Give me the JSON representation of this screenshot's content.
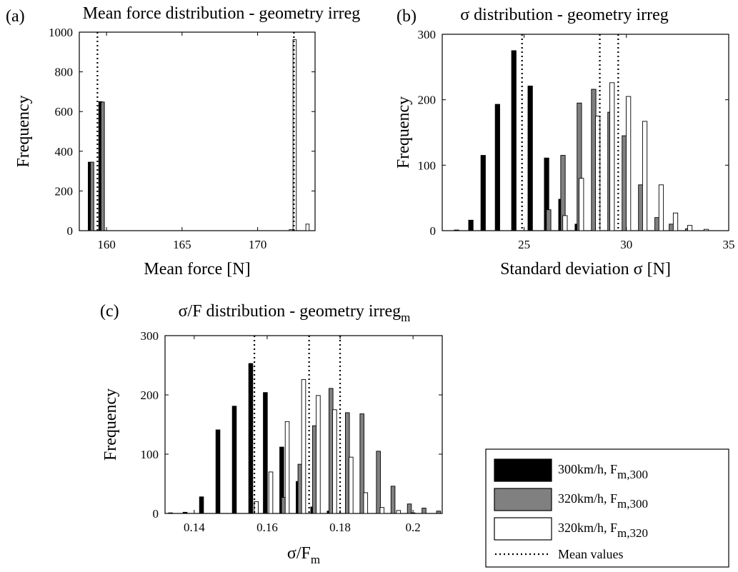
{
  "colors": {
    "series_300_F300": "#000000",
    "series_320_F300": "#808080",
    "series_320_F320": "#ffffff",
    "mean_line": "#000000",
    "axes": "#000000"
  },
  "legend": {
    "placement": "bottom-right",
    "items": [
      {
        "label": "300km/h, F",
        "sub": "m,300",
        "style": "black-bar"
      },
      {
        "label": "320km/h, F",
        "sub": "m,300",
        "style": "gray-bar"
      },
      {
        "label": "320km/h, F",
        "sub": "m,320",
        "style": "white-bar"
      },
      {
        "label": "Mean values",
        "sub": "",
        "style": "dotted-line"
      }
    ]
  },
  "chart_data": [
    {
      "panel_label": "(a)",
      "type": "bar",
      "title": "Mean force distribution - geometry irreg",
      "xlabel": "Mean force [N]",
      "ylabel": "Frequency",
      "xlim": [
        158.2,
        173.8
      ],
      "ylim": [
        0,
        1000
      ],
      "xticks": [
        160,
        165,
        170
      ],
      "yticks": [
        0,
        200,
        400,
        600,
        800,
        1000
      ],
      "bar_width": 0.22,
      "series": [
        {
          "name": "300km/h, F m,300",
          "color": "#000000",
          "x": [
            158.9,
            159.6
          ],
          "values": [
            345,
            650
          ]
        },
        {
          "name": "320km/h, F m,300",
          "color": "#808080",
          "x": [
            159.05,
            159.75
          ],
          "values": [
            345,
            648
          ]
        },
        {
          "name": "320km/h, F m,320",
          "color": "#ffffff",
          "x": [
            172.2,
            172.45,
            173.3
          ],
          "values": [
            5,
            962,
            33
          ]
        }
      ],
      "mean_values": [
        159.4,
        172.4
      ]
    },
    {
      "panel_label": "(b)",
      "type": "bar",
      "title": "σ distribution - geometry irreg",
      "xlabel": "Standard deviation σ  [N]",
      "ylabel": "Frequency",
      "xlim": [
        21,
        35
      ],
      "ylim": [
        0,
        300
      ],
      "xticks": [
        25,
        30,
        35
      ],
      "yticks": [
        0,
        100,
        200,
        300
      ],
      "bar_width": 0.22,
      "series": [
        {
          "name": "300km/h, F m,300",
          "color": "#000000",
          "x": [
            21.7,
            22.4,
            23.0,
            23.7,
            24.5,
            25.3,
            26.1,
            26.8,
            27.6
          ],
          "values": [
            1,
            16,
            115,
            193,
            275,
            221,
            111,
            48,
            10
          ]
        },
        {
          "name": "320km/h, F m,300",
          "color": "#808080",
          "x": [
            26.2,
            26.9,
            27.7,
            28.4,
            29.2,
            29.9,
            30.7,
            31.5,
            32.2,
            33.0
          ],
          "values": [
            32,
            115,
            195,
            216,
            181,
            145,
            70,
            20,
            10,
            3
          ]
        },
        {
          "name": "320km/h, F m,320",
          "color": "#ffffff",
          "x": [
            27.0,
            27.8,
            28.6,
            29.3,
            30.1,
            30.9,
            31.7,
            32.4,
            33.1,
            33.9
          ],
          "values": [
            23,
            80,
            175,
            226,
            205,
            167,
            70,
            27,
            8,
            2
          ]
        }
      ],
      "mean_values": [
        24.9,
        28.7,
        29.6
      ]
    },
    {
      "panel_label": "(c)",
      "type": "bar",
      "title": "σ/F distribution - geometry irreg",
      "title_sub": "m",
      "xlabel": "σ/F",
      "xlabel_sub": "m",
      "ylabel": "Frequency",
      "xlim": [
        0.132,
        0.208
      ],
      "ylim": [
        0,
        300
      ],
      "xticks": [
        0.14,
        0.16,
        0.18,
        0.2
      ],
      "xtick_labels": [
        "0.14",
        "0.16",
        "0.18",
        "0.2"
      ],
      "yticks": [
        0,
        100,
        200,
        300
      ],
      "bar_width": 0.0011,
      "series": [
        {
          "name": "300km/h, F m,300",
          "color": "#000000",
          "x": [
            0.1335,
            0.1375,
            0.142,
            0.1465,
            0.151,
            0.1555,
            0.1595,
            0.164,
            0.1685,
            0.1725,
            0.177
          ],
          "values": [
            1,
            2,
            28,
            141,
            181,
            253,
            204,
            112,
            54,
            11,
            4
          ]
        },
        {
          "name": "320km/h, F m,300",
          "color": "#808080",
          "x": [
            0.1645,
            0.169,
            0.173,
            0.1775,
            0.182,
            0.186,
            0.1905,
            0.1945,
            0.199,
            0.203,
            0.207
          ],
          "values": [
            27,
            83,
            148,
            211,
            170,
            168,
            105,
            46,
            16,
            9,
            4
          ]
        },
        {
          "name": "320km/h, F m,320",
          "color": "#ffffff",
          "x": [
            0.157,
            0.161,
            0.1655,
            0.17,
            0.174,
            0.1785,
            0.183,
            0.187,
            0.1915,
            0.196,
            0.2
          ],
          "values": [
            20,
            70,
            155,
            226,
            199,
            175,
            95,
            35,
            10,
            5,
            1
          ]
        }
      ],
      "mean_values": [
        0.1565,
        0.1715,
        0.18
      ]
    }
  ]
}
